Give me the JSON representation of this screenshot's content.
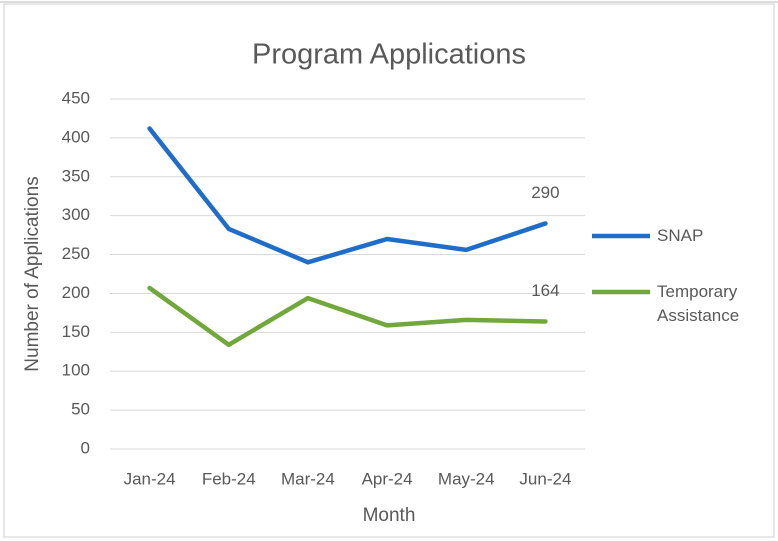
{
  "chart_data": {
    "type": "line",
    "title": "Program Applications",
    "x_label": "Month",
    "y_label": "Number of Applications",
    "categories": [
      "Jan-24",
      "Feb-24",
      "Mar-24",
      "Apr-24",
      "May-24",
      "Jun-24"
    ],
    "series": [
      {
        "name": "SNAP",
        "color": "#1f6dc8",
        "values": [
          412,
          283,
          240,
          270,
          256,
          290
        ]
      },
      {
        "name": "Temporary Assistance",
        "color": "#70a83b",
        "values": [
          207,
          134,
          194,
          159,
          166,
          164
        ]
      }
    ],
    "ylim": [
      0,
      450
    ],
    "yticks": [
      0,
      50,
      100,
      150,
      200,
      250,
      300,
      350,
      400,
      450
    ],
    "grid": true,
    "legend": "right"
  }
}
